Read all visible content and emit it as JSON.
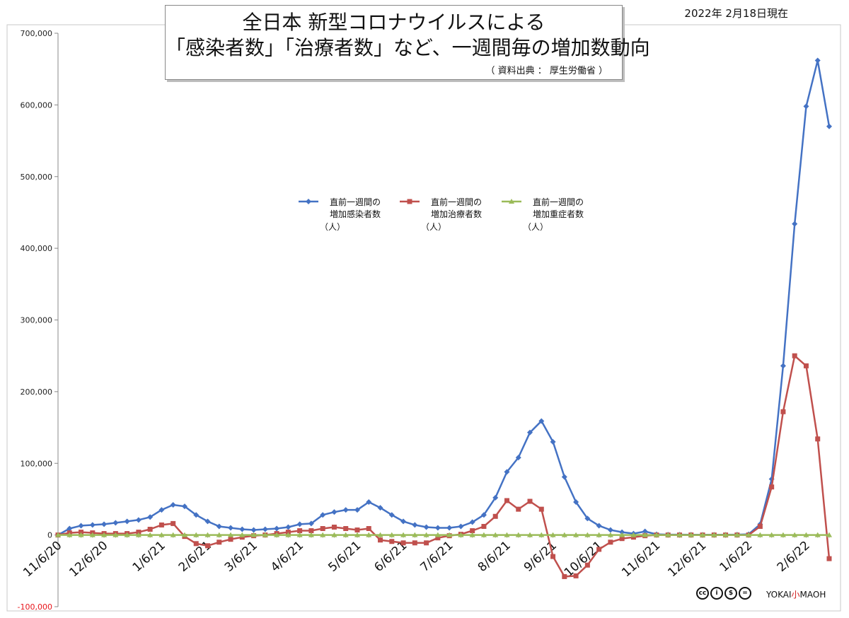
{
  "title": {
    "line1": "全日本 新型コロナウイルスによる",
    "line2": "「感染者数」「治療者数」など、一週間毎の増加数動向",
    "source": "（ 資料出典 ： 厚生労働省 ）"
  },
  "date_stamp": "2022年 2月18日現在",
  "legend": [
    {
      "line1": "直前一週間の",
      "line2": "増加感染者数",
      "unit": "（人）",
      "color": "#4472c4",
      "marker": "diamond"
    },
    {
      "line1": "直前一週間の",
      "line2": "増加治療者数",
      "unit": "（人）",
      "color": "#c0504d",
      "marker": "square"
    },
    {
      "line1": "直前一週間の",
      "line2": "増加重症者数",
      "unit": "（人）",
      "color": "#9bbb59",
      "marker": "triangle"
    }
  ],
  "footer": {
    "cc_icons": [
      "cc",
      "i",
      "$",
      "="
    ],
    "brand_left": "YOKAI",
    "brand_mid": "小",
    "brand_right": "MAOH"
  },
  "chart_data": {
    "type": "line",
    "title": "全日本 新型コロナウイルスによる「感染者数」「治療者数」など、一週間毎の増加数動向",
    "xlabel": "",
    "ylabel": "",
    "ylim": [
      -100000,
      700000
    ],
    "yticks": [
      -100000,
      0,
      100000,
      200000,
      300000,
      400000,
      500000,
      600000,
      700000
    ],
    "ytick_labels": [
      "-100,000",
      "0",
      "100,000",
      "200,000",
      "300,000",
      "400,000",
      "500,000",
      "600,000",
      "700,000"
    ],
    "negative_tick_color": "#e8141a",
    "grid": false,
    "x_tick_labels": [
      {
        "index": 0,
        "label": "11/6/20"
      },
      {
        "index": 4,
        "label": "12/6/20"
      },
      {
        "index": 9,
        "label": "1/6/21"
      },
      {
        "index": 13,
        "label": "2/6/21"
      },
      {
        "index": 17,
        "label": "3/6/21"
      },
      {
        "index": 21,
        "label": "4/6/21"
      },
      {
        "index": 26,
        "label": "5/6/21"
      },
      {
        "index": 30,
        "label": "6/6/21"
      },
      {
        "index": 34,
        "label": "7/6/21"
      },
      {
        "index": 39,
        "label": "8/6/21"
      },
      {
        "index": 43,
        "label": "9/6/21"
      },
      {
        "index": 47,
        "label": "10/6/21"
      },
      {
        "index": 52,
        "label": "11/6/21"
      },
      {
        "index": 56,
        "label": "12/6/21"
      },
      {
        "index": 60,
        "label": "1/6/22"
      },
      {
        "index": 65,
        "label": "2/6/22"
      }
    ],
    "x_count": 68,
    "series": [
      {
        "name": "直前一週間の増加感染者数（人）",
        "color": "#4472c4",
        "marker": "diamond",
        "values": [
          0,
          9000,
          13000,
          14000,
          15000,
          17000,
          19000,
          21000,
          25000,
          35000,
          42000,
          40000,
          28000,
          19000,
          12000,
          10000,
          8000,
          7000,
          8000,
          9000,
          11000,
          15000,
          16000,
          28000,
          32000,
          35000,
          35000,
          46000,
          38000,
          28000,
          19000,
          14000,
          11000,
          10000,
          10000,
          12000,
          18000,
          28000,
          52000,
          88000,
          108000,
          143000,
          159000,
          130000,
          81000,
          46000,
          23000,
          13000,
          7000,
          4000,
          2000,
          5000,
          1000,
          500,
          500,
          400,
          300,
          300,
          300,
          500,
          1000,
          15000,
          78000,
          236000,
          434000,
          598000,
          662000,
          570000
        ]
      },
      {
        "name": "直前一週間の増加治療者数（人）",
        "color": "#c0504d",
        "marker": "square",
        "values": [
          0,
          3000,
          4000,
          3000,
          2000,
          2000,
          2000,
          4000,
          8000,
          14000,
          16000,
          -2000,
          -12000,
          -15000,
          -10000,
          -6000,
          -3000,
          -1000,
          0,
          2000,
          4000,
          6000,
          6000,
          9000,
          11000,
          9000,
          7000,
          9000,
          -7000,
          -9000,
          -11000,
          -11000,
          -11000,
          -4000,
          -1000,
          1000,
          6000,
          12000,
          26000,
          48000,
          36000,
          47000,
          36000,
          -30000,
          -58000,
          -57000,
          -42000,
          -20000,
          -10000,
          -5000,
          -3000,
          -1000,
          0,
          0,
          0,
          0,
          0,
          0,
          0,
          0,
          0,
          12000,
          67000,
          172000,
          250000,
          236000,
          134000,
          -33000
        ]
      },
      {
        "name": "直前一週間の増加重症者数（人）",
        "color": "#9bbb59",
        "marker": "triangle",
        "values": [
          0,
          0,
          0,
          0,
          0,
          0,
          0,
          0,
          0,
          0,
          0,
          0,
          0,
          0,
          0,
          0,
          0,
          0,
          0,
          0,
          0,
          0,
          0,
          0,
          0,
          0,
          0,
          0,
          0,
          0,
          0,
          0,
          0,
          0,
          0,
          0,
          0,
          0,
          0,
          0,
          0,
          0,
          0,
          0,
          0,
          0,
          0,
          0,
          0,
          0,
          0,
          0,
          0,
          0,
          0,
          0,
          0,
          0,
          0,
          0,
          0,
          0,
          0,
          0,
          0,
          0,
          0,
          0
        ]
      }
    ]
  }
}
